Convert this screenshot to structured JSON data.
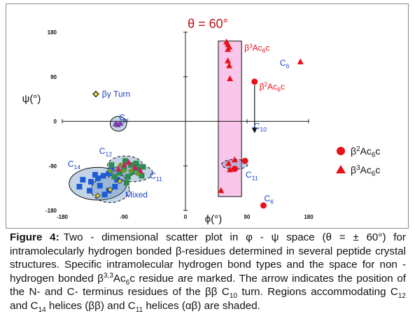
{
  "chart_data": {
    "type": "scatter",
    "title": "θ = 60°",
    "xlabel": "ϕ(°)",
    "ylabel": "ψ(°)",
    "xlim": [
      -180,
      180
    ],
    "ylim": [
      -180,
      180
    ],
    "xticks": [
      -180,
      -90,
      0,
      90,
      180
    ],
    "yticks": [
      -180,
      -90,
      0,
      90,
      180
    ],
    "xtick_labels": [
      "-180",
      "-90",
      "0",
      "90",
      "180"
    ],
    "ytick_labels": [
      "-180",
      "-90",
      "0",
      "90",
      "180"
    ],
    "grid": false,
    "legend_position": "right",
    "series": [
      {
        "name": "β2Ac6c",
        "marker": "circle",
        "color": "#e8101a",
        "points": [
          [
            101,
            80
          ],
          [
            87,
            -80
          ],
          [
            72,
            -96
          ],
          [
            114,
            -170
          ]
        ]
      },
      {
        "name": "β3Ac6c",
        "marker": "triangle",
        "color": "#e8101a",
        "points": [
          [
            60,
            160
          ],
          [
            62,
            155
          ],
          [
            64,
            150
          ],
          [
            62,
            145
          ],
          [
            62,
            122
          ],
          [
            64,
            112
          ],
          [
            65,
            86
          ],
          [
            63,
            -85
          ],
          [
            65,
            -98
          ],
          [
            72,
            -78
          ],
          [
            52,
            -140
          ],
          [
            168,
            120
          ]
        ]
      },
      {
        "name": "",
        "marker": "diamond-open",
        "color": "#111111",
        "points": [
          [
            -131,
            55
          ]
        ]
      },
      {
        "name": "",
        "marker": "square",
        "color": "#1e5bd4",
        "points": [
          [
            -108,
            -95
          ],
          [
            -120,
            -110
          ],
          [
            -132,
            -108
          ],
          [
            -150,
            -118
          ],
          [
            -138,
            -122
          ],
          [
            -125,
            -130
          ],
          [
            -112,
            -140
          ],
          [
            -100,
            -118
          ],
          [
            -155,
            -132
          ],
          [
            -140,
            -140
          ],
          [
            -118,
            -148
          ],
          [
            -103,
            -132
          ],
          [
            -128,
            -115
          ],
          [
            -112,
            -105
          ]
        ]
      },
      {
        "name": "",
        "marker": "square",
        "color": "#2e8c4e",
        "points": [
          [
            -88,
            -80
          ],
          [
            -80,
            -88
          ],
          [
            -72,
            -85
          ],
          [
            -90,
            -95
          ],
          [
            -78,
            -102
          ],
          [
            -70,
            -96
          ],
          [
            -64,
            -110
          ],
          [
            -84,
            -112
          ],
          [
            -96,
            -104
          ],
          [
            -104,
            -112
          ],
          [
            -86,
            -124
          ],
          [
            -108,
            -88
          ],
          [
            -62,
            -92
          ]
        ]
      },
      {
        "name": "",
        "marker": "triangle",
        "color": "#c8235a",
        "points": [
          [
            -83,
            -83
          ],
          [
            -74,
            -93
          ],
          [
            -90,
            -88
          ],
          [
            -66,
            -100
          ],
          [
            -98,
            -96
          ]
        ]
      },
      {
        "name": "",
        "marker": "triangle",
        "color": "#7b3fa8",
        "points": [
          [
            -102,
            -5
          ],
          [
            -95,
            -4
          ],
          [
            -99,
            -7
          ]
        ]
      },
      {
        "name": "",
        "marker": "diamond",
        "color": "#6d9a2e",
        "points": [
          [
            -95,
            -88
          ],
          [
            -80,
            -100
          ],
          [
            -110,
            -100
          ],
          [
            -70,
            -106
          ],
          [
            -90,
            -100
          ]
        ]
      },
      {
        "name": "",
        "marker": "diamond-yellow",
        "color": "#e0cf3a",
        "points": [
          [
            -128,
            -150
          ],
          [
            -110,
            -138
          ],
          [
            -96,
            -121
          ]
        ]
      }
    ],
    "regions": [
      {
        "label": "C8",
        "color": "#4a7db3",
        "shape": "ellipse",
        "cx": -98,
        "cy": -5,
        "rx": 12,
        "ry": 15
      },
      {
        "label": "C14",
        "color": "#4a7db3",
        "shape": "ellipse",
        "cx": -128,
        "cy": -126,
        "rx": 42,
        "ry": 33
      },
      {
        "label": "C12",
        "color": "#4a7db3",
        "shape": "ellipse",
        "cx": -88,
        "cy": -90,
        "rx": 26,
        "ry": 20
      },
      {
        "label": "C11",
        "color": "#4a7db3",
        "shape": "ellipse",
        "cx": -78,
        "cy": -104,
        "rx": 30,
        "ry": 18
      },
      {
        "label": "Mixed",
        "color": "#4a7db3",
        "shape": "ellipse",
        "cx": -110,
        "cy": -138,
        "rx": 28,
        "ry": 26
      },
      {
        "label": "C11",
        "color": "#4a7db3",
        "shape": "ellipse",
        "cx": 72,
        "cy": -87,
        "rx": 19,
        "ry": 10
      }
    ],
    "band": {
      "x": [
        48,
        82
      ],
      "y": [
        -152,
        162
      ],
      "color": "#f7c6ea"
    },
    "arrow": {
      "from": [
        101,
        80
      ],
      "to": [
        101,
        -24
      ]
    },
    "annotations": [
      {
        "text": "βγ Turn",
        "x": -122,
        "y": 55,
        "color": "#1a44c9"
      },
      {
        "text": "C8",
        "x": -97,
        "y": 8,
        "color": "#1a44c9"
      },
      {
        "text": "C12",
        "x": -126,
        "y": -60,
        "color": "#1a44c9"
      },
      {
        "text": "C14",
        "x": -172,
        "y": -86,
        "color": "#1a44c9"
      },
      {
        "text": "C11",
        "x": -52,
        "y": -110,
        "color": "#1a44c9"
      },
      {
        "text": "Mixed",
        "x": -88,
        "y": -148,
        "color": "#1a44c9"
      },
      {
        "text": "β3Ac6c",
        "x": 86,
        "y": 148,
        "color": "#e8101a"
      },
      {
        "text": "C6",
        "x": 138,
        "y": 118,
        "color": "#1a44c9"
      },
      {
        "text": "β2Ac6c",
        "x": 108,
        "y": 70,
        "color": "#e8101a"
      },
      {
        "text": "C10",
        "x": 100,
        "y": -10,
        "color": "#1a44c9"
      },
      {
        "text": "C11",
        "x": 88,
        "y": -108,
        "color": "#1a44c9"
      },
      {
        "text": "C6",
        "x": 115,
        "y": -156,
        "color": "#1a44c9"
      }
    ],
    "legend": [
      {
        "marker": "circle",
        "label": "β2Ac6c",
        "color": "#e8101a"
      },
      {
        "marker": "triangle",
        "label": "β3Ac6c",
        "color": "#e8101a"
      }
    ]
  },
  "caption": {
    "label": "Figure 4:",
    "text_1": "Two - dimensional scatter plot in φ - ψ space (θ = ± 60°) for intramolecularly hydrogen bonded β-residues determined in several peptide crystal structures. Specific intramolecular hydrogen bond types and the space for non - hydrogen bonded β",
    "sup_1": "3,3",
    "text_2": "Ac",
    "sub_1": "6",
    "text_3": "c residue are marked. The arrow indicates the position of the N- and C- terminus residues of the ββ C",
    "sub_2": "10",
    "text_4": " turn. Regions accommodating C",
    "sub_3": "12",
    "text_5": " and C",
    "sub_4": "14",
    "text_6": " helices (ββ) and C",
    "sub_5": "11",
    "text_7": " helices (αβ) are shaded."
  }
}
